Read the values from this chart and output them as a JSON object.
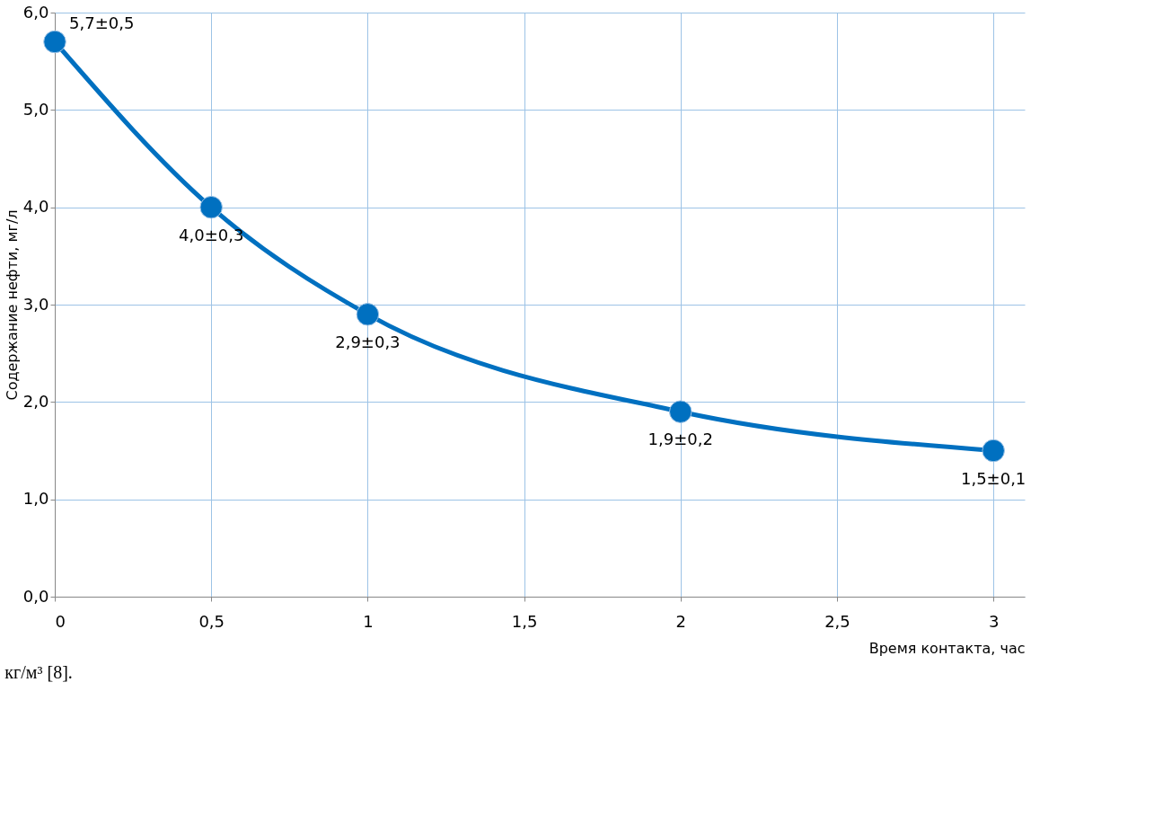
{
  "chart_data": {
    "type": "line",
    "xlabel": "Время контакта, час",
    "ylabel": "Содержание нефти, мг/л",
    "x": [
      0,
      0.5,
      1,
      2,
      3
    ],
    "series": [
      {
        "color": "#0070c0",
        "values": [
          5.7,
          4.0,
          2.9,
          1.9,
          1.5
        ],
        "value_labels": [
          "5,7±0,5",
          "4,0±0,3",
          "2,9±0,3",
          "1,9±0,2",
          "1,5±0,1"
        ]
      }
    ],
    "xlim": [
      0,
      3.1
    ],
    "xticks": [
      {
        "value": 0,
        "label": "0"
      },
      {
        "value": 0.5,
        "label": "0,5"
      },
      {
        "value": 1,
        "label": "1"
      },
      {
        "value": 1.5,
        "label": "1,5"
      },
      {
        "value": 2,
        "label": "2"
      },
      {
        "value": 2.5,
        "label": "2,5"
      },
      {
        "value": 3,
        "label": "3"
      }
    ],
    "ylim": [
      0,
      6
    ],
    "yticks": [
      {
        "value": 0,
        "label": "0,0"
      },
      {
        "value": 1,
        "label": "1,0"
      },
      {
        "value": 2,
        "label": "2,0"
      },
      {
        "value": 3,
        "label": "3,0"
      },
      {
        "value": 4,
        "label": "4,0"
      },
      {
        "value": 5,
        "label": "5,0"
      },
      {
        "value": 6,
        "label": "6,0"
      }
    ],
    "grid": true,
    "marker": "circle",
    "line_style": "solid",
    "annotations": [
      "кг/м³ [8]."
    ]
  }
}
